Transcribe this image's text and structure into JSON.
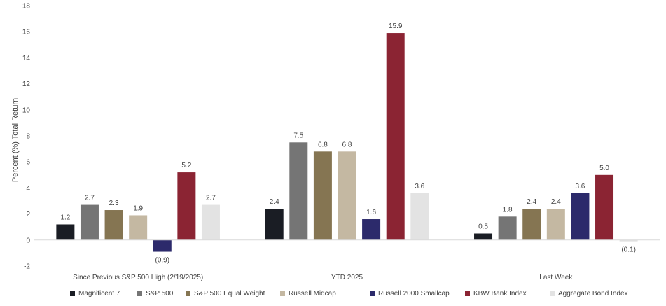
{
  "chart_data": {
    "type": "bar",
    "title": "",
    "ylabel": "Percent (%) Total Return",
    "xlabel": "",
    "ylim": [
      -2,
      18
    ],
    "yticks": [
      -2,
      0,
      2,
      4,
      6,
      8,
      10,
      12,
      14,
      16,
      18
    ],
    "ytick_labels": [
      "-2",
      "0",
      "2",
      "4",
      "6",
      "8",
      "10",
      "12",
      "14",
      "16",
      "18"
    ],
    "grid": false,
    "legend_position": "bottom",
    "categories": [
      "Since Previous S&P 500 High (2/19/2025)",
      "YTD 2025",
      "Last Week"
    ],
    "series": [
      {
        "name": "Magnificent 7",
        "color": "#1a1d24",
        "values": [
          1.2,
          2.4,
          0.5
        ],
        "labels": [
          "1.2",
          "2.4",
          "0.5"
        ]
      },
      {
        "name": "S&P 500",
        "color": "#757575",
        "values": [
          2.7,
          7.5,
          1.8
        ],
        "labels": [
          "2.7",
          "7.5",
          "1.8"
        ]
      },
      {
        "name": "S&P 500 Equal Weight",
        "color": "#857552",
        "values": [
          2.3,
          6.8,
          2.4
        ],
        "labels": [
          "2.3",
          "6.8",
          "2.4"
        ]
      },
      {
        "name": "Russell Midcap",
        "color": "#c4b8a2",
        "values": [
          1.9,
          6.8,
          2.4
        ],
        "labels": [
          "1.9",
          "6.8",
          "2.4"
        ]
      },
      {
        "name": "Russell 2000 Smallcap",
        "color": "#2c2a6b",
        "values": [
          -0.9,
          1.6,
          3.6
        ],
        "labels": [
          "(0.9)",
          "1.6",
          "3.6"
        ]
      },
      {
        "name": "KBW Bank Index",
        "color": "#8b2433",
        "values": [
          5.2,
          15.9,
          5.0
        ],
        "labels": [
          "5.2",
          "15.9",
          "5.0"
        ]
      },
      {
        "name": "Aggregate Bond Index",
        "color": "#e3e3e3",
        "values": [
          2.7,
          3.6,
          -0.1
        ],
        "labels": [
          "2.7",
          "3.6",
          "(0.1)"
        ]
      }
    ]
  }
}
